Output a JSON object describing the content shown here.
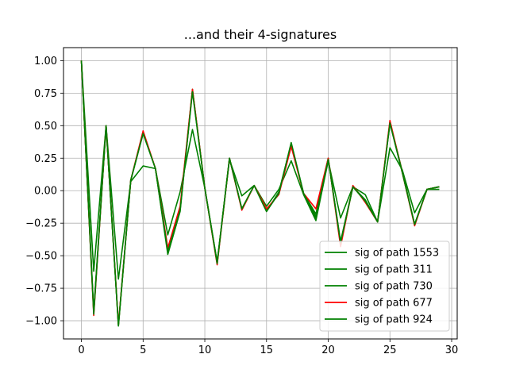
{
  "chart_data": {
    "type": "line",
    "title": "...and their 4-signatures",
    "xlabel": "",
    "ylabel": "",
    "xlim": [
      -1.45,
      30.45
    ],
    "ylim": [
      -1.14,
      1.1
    ],
    "xticks": [
      0,
      5,
      10,
      15,
      20,
      25,
      30
    ],
    "yticks": [
      1.0,
      0.75,
      0.5,
      0.25,
      0.0,
      -0.25,
      -0.5,
      -0.75,
      -1.0
    ],
    "ytick_labels": [
      "1.00",
      "0.75",
      "0.50",
      "0.25",
      "0.00",
      "−0.25",
      "−0.50",
      "−0.75",
      "−1.00"
    ],
    "xtick_labels": [
      "0",
      "5",
      "10",
      "15",
      "20",
      "25",
      "30"
    ],
    "grid": true,
    "legend_position": "lower-right",
    "x": [
      0,
      1,
      2,
      3,
      4,
      5,
      6,
      7,
      8,
      9,
      10,
      11,
      12,
      13,
      14,
      15,
      16,
      17,
      18,
      19,
      20,
      21,
      22,
      23,
      24,
      25,
      26,
      27,
      28,
      29
    ],
    "series": [
      {
        "name": "sig of path 1553",
        "color": "#008000",
        "values": [
          1.0,
          -0.94,
          0.5,
          -1.03,
          0.08,
          0.44,
          0.17,
          -0.49,
          -0.16,
          0.78,
          0.02,
          -0.55,
          0.25,
          -0.14,
          0.04,
          -0.16,
          -0.01,
          0.36,
          -0.02,
          -0.21,
          0.24,
          -0.39,
          0.03,
          -0.07,
          -0.24,
          0.52,
          0.14,
          -0.26,
          0.01,
          0.03
        ]
      },
      {
        "name": "sig of path 311",
        "color": "#008000",
        "values": [
          1.0,
          -0.62,
          0.5,
          -0.68,
          0.07,
          0.19,
          0.17,
          -0.34,
          -0.01,
          0.47,
          0.02,
          -0.55,
          0.24,
          -0.04,
          0.04,
          -0.12,
          0.01,
          0.23,
          -0.03,
          -0.23,
          0.23,
          -0.21,
          0.03,
          -0.03,
          -0.24,
          0.33,
          0.16,
          -0.17,
          0.01,
          0.01
        ]
      },
      {
        "name": "sig of path 730",
        "color": "#008000",
        "values": [
          1.0,
          -0.93,
          0.5,
          -1.04,
          0.08,
          0.45,
          0.17,
          -0.46,
          -0.14,
          0.77,
          0.02,
          -0.56,
          0.25,
          -0.14,
          0.04,
          -0.15,
          -0.02,
          0.36,
          -0.02,
          -0.18,
          0.25,
          -0.41,
          0.03,
          -0.08,
          -0.24,
          0.53,
          0.15,
          -0.26,
          0.01,
          0.03
        ]
      },
      {
        "name": "sig of path 677",
        "color": "#ff0000",
        "values": [
          1.0,
          -0.96,
          0.5,
          -1.03,
          0.08,
          0.46,
          0.17,
          -0.44,
          -0.12,
          0.78,
          0.02,
          -0.57,
          0.25,
          -0.15,
          0.04,
          -0.14,
          -0.03,
          0.34,
          -0.02,
          -0.14,
          0.25,
          -0.43,
          0.04,
          -0.09,
          -0.24,
          0.54,
          0.14,
          -0.27,
          0.01,
          0.03
        ]
      },
      {
        "name": "sig of path 924",
        "color": "#008000",
        "values": [
          1.0,
          -0.95,
          0.5,
          -1.04,
          0.08,
          0.44,
          0.17,
          -0.47,
          -0.15,
          0.76,
          0.02,
          -0.56,
          0.25,
          -0.14,
          0.04,
          -0.16,
          -0.02,
          0.37,
          -0.02,
          -0.2,
          0.24,
          -0.4,
          0.03,
          -0.08,
          -0.24,
          0.52,
          0.14,
          -0.26,
          0.01,
          0.03
        ]
      }
    ]
  }
}
